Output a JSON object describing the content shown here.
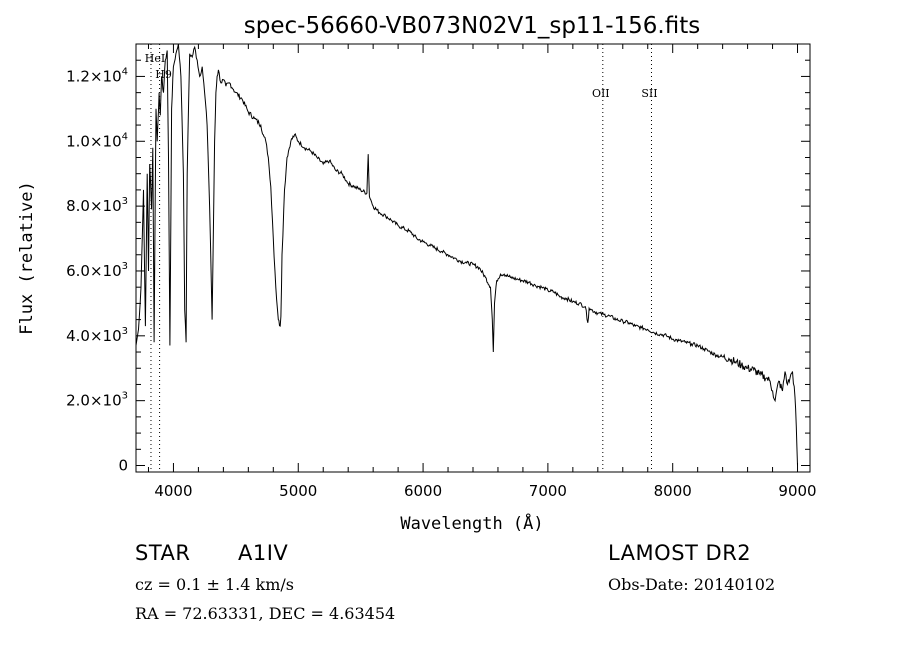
{
  "chart_data": {
    "type": "line",
    "title": "spec-56660-VB073N02V1_sp11-156.fits",
    "xlabel": "Wavelength (Å)",
    "ylabel": "Flux (relative)",
    "xlim": [
      3700,
      9100
    ],
    "ylim": [
      -200,
      13000
    ],
    "x_ticks": [
      {
        "value": 4000,
        "label": "4000"
      },
      {
        "value": 5000,
        "label": "5000"
      },
      {
        "value": 6000,
        "label": "6000"
      },
      {
        "value": 7000,
        "label": "7000"
      },
      {
        "value": 8000,
        "label": "8000"
      },
      {
        "value": 9000,
        "label": "9000"
      }
    ],
    "y_ticks": [
      {
        "value": 0,
        "mant": "0",
        "exp": ""
      },
      {
        "value": 2000,
        "mant": "2.0×10",
        "exp": "3"
      },
      {
        "value": 4000,
        "mant": "4.0×10",
        "exp": "3"
      },
      {
        "value": 6000,
        "mant": "6.0×10",
        "exp": "3"
      },
      {
        "value": 8000,
        "mant": "8.0×10",
        "exp": "3"
      },
      {
        "value": 10000,
        "mant": "1.0×10",
        "exp": "4"
      },
      {
        "value": 12000,
        "mant": "1.2×10",
        "exp": "4"
      }
    ],
    "line_markers": [
      {
        "label": "HeI",
        "x": 3820,
        "label_row": 0
      },
      {
        "label": "H9",
        "x": 3889,
        "label_row": 1
      },
      {
        "label": "OII",
        "x": 7440,
        "label_row": 2
      },
      {
        "label": "SII",
        "x": 7830,
        "label_row": 2
      }
    ],
    "series": [
      {
        "x": [
          3700,
          3720,
          3740,
          3760,
          3775,
          3790,
          3800,
          3810,
          3825,
          3835,
          3845,
          3860,
          3870,
          3885,
          3895,
          3905,
          3920,
          3935,
          3950,
          3960,
          3972,
          3985,
          4000,
          4020,
          4040,
          4060,
          4080,
          4090,
          4101,
          4110,
          4130,
          4150,
          4170,
          4190,
          4210,
          4230,
          4250,
          4270,
          4290,
          4310,
          4330,
          4340,
          4350,
          4360,
          4380,
          4400,
          4420,
          4450,
          4480,
          4500,
          4550,
          4600,
          4650,
          4700,
          4720,
          4740,
          4760,
          4780,
          4800,
          4820,
          4840,
          4855,
          4861,
          4870,
          4890,
          4910,
          4940,
          4970,
          5000,
          5050,
          5100,
          5150,
          5200,
          5250,
          5300,
          5350,
          5400,
          5450,
          5500,
          5550,
          5560,
          5570,
          5580,
          5600,
          5650,
          5700,
          5750,
          5800,
          5850,
          5900,
          5950,
          6000,
          6050,
          6100,
          6150,
          6200,
          6250,
          6300,
          6350,
          6400,
          6450,
          6500,
          6540,
          6555,
          6563,
          6572,
          6590,
          6620,
          6650,
          6700,
          6750,
          6800,
          6850,
          6900,
          6950,
          7000,
          7050,
          7100,
          7150,
          7200,
          7250,
          7300,
          7320,
          7330,
          7350,
          7400,
          7450,
          7500,
          7550,
          7600,
          7650,
          7700,
          7750,
          7800,
          7850,
          7900,
          7950,
          8000,
          8050,
          8100,
          8150,
          8200,
          8250,
          8300,
          8350,
          8400,
          8450,
          8500,
          8550,
          8600,
          8650,
          8700,
          8750,
          8780,
          8800,
          8820,
          8850,
          8880,
          8900,
          8920,
          8940,
          8960,
          8980,
          8990,
          9000
        ],
        "y": [
          3700,
          4200,
          5500,
          8500,
          4300,
          9000,
          6000,
          9300,
          7900,
          9800,
          3800,
          11000,
          10000,
          11500,
          10800,
          12000,
          11500,
          12500,
          12800,
          9500,
          3700,
          11000,
          12300,
          12700,
          13000,
          12000,
          9000,
          4800,
          3800,
          9000,
          12700,
          12600,
          12900,
          12500,
          12000,
          12300,
          11500,
          10500,
          8000,
          4500,
          10000,
          11500,
          12000,
          12200,
          11800,
          11900,
          11700,
          11800,
          11600,
          11500,
          11300,
          10900,
          10700,
          10500,
          10200,
          10000,
          9500,
          8600,
          7000,
          5500,
          4500,
          4300,
          4600,
          6500,
          8500,
          9500,
          10000,
          10200,
          10000,
          9800,
          9700,
          9500,
          9300,
          9400,
          9100,
          9000,
          8700,
          8600,
          8500,
          8400,
          9600,
          8300,
          8200,
          8000,
          7800,
          7700,
          7550,
          7400,
          7300,
          7200,
          7000,
          6900,
          6800,
          6700,
          6600,
          6500,
          6400,
          6300,
          6250,
          6200,
          6100,
          5800,
          5500,
          4500,
          3500,
          5000,
          5700,
          5900,
          5900,
          5800,
          5750,
          5700,
          5650,
          5550,
          5500,
          5400,
          5350,
          5200,
          5150,
          5050,
          5000,
          4900,
          4400,
          4850,
          4800,
          4700,
          4650,
          4600,
          4500,
          4450,
          4400,
          4300,
          4250,
          4200,
          4100,
          4050,
          4000,
          3900,
          3850,
          3800,
          3750,
          3700,
          3600,
          3500,
          3400,
          3350,
          3300,
          3200,
          3100,
          3000,
          2950,
          2800,
          2700,
          2600,
          2300,
          2000,
          2600,
          2300,
          2900,
          2500,
          2700,
          2900,
          2100,
          1200,
          0
        ]
      }
    ]
  },
  "info": {
    "object_type": "STAR",
    "spectral_class": "A1IV",
    "survey": "LAMOST DR2",
    "cz": "cz = 0.1 ± 1.4 km/s",
    "obs_date": "Obs-Date: 20140102",
    "coords": "RA =  72.63331, DEC =   4.63454"
  }
}
